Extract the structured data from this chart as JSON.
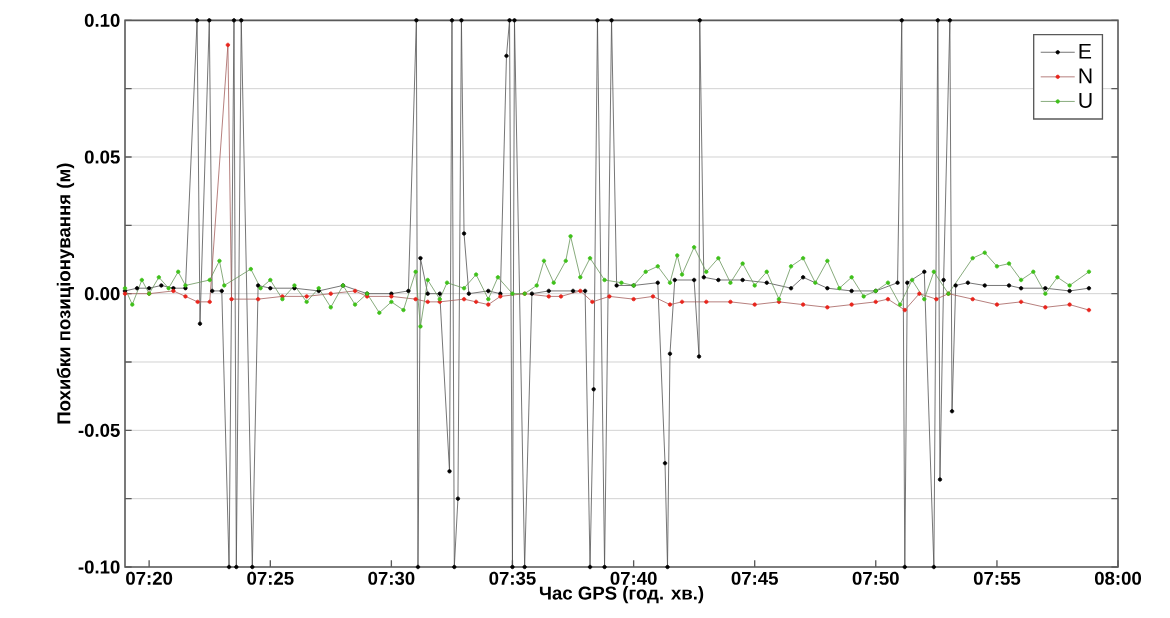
{
  "chart_data": {
    "type": "line",
    "xlabel": "Час GPS (год. хв.)",
    "ylabel": "Похибки позиціонування (м)",
    "xlim": [
      7.3167,
      8.0
    ],
    "ylim": [
      -0.1,
      0.1
    ],
    "xticks": [
      {
        "value": 7.3333,
        "label": "07:20"
      },
      {
        "value": 7.4167,
        "label": "07:25"
      },
      {
        "value": 7.5,
        "label": "07:30"
      },
      {
        "value": 7.5833,
        "label": "07:35"
      },
      {
        "value": 7.6667,
        "label": "07:40"
      },
      {
        "value": 7.75,
        "label": "07:45"
      },
      {
        "value": 7.8333,
        "label": "07:50"
      },
      {
        "value": 7.9167,
        "label": "07:55"
      },
      {
        "value": 8.0,
        "label": "08:00"
      }
    ],
    "yticks": [
      {
        "value": -0.1,
        "label": "-0.10"
      },
      {
        "value": -0.075,
        "label": null
      },
      {
        "value": -0.05,
        "label": "-0.05"
      },
      {
        "value": -0.025,
        "label": null
      },
      {
        "value": 0,
        "label": "0.00"
      },
      {
        "value": 0.025,
        "label": null
      },
      {
        "value": 0.05,
        "label": "0.05"
      },
      {
        "value": 0.075,
        "label": null
      },
      {
        "value": 0.1,
        "label": "0.10"
      }
    ],
    "grid": "y",
    "legend": "top right",
    "marker": "circle",
    "line_style": "solid",
    "series": [
      {
        "name": "E",
        "color": "#000000",
        "x": [
          7.3167,
          7.325,
          7.3333,
          7.3417,
          7.35,
          7.3583,
          7.3663,
          7.3683,
          7.3747,
          7.3767,
          7.3833,
          7.3883,
          7.3917,
          7.3933,
          7.3967,
          7.4043,
          7.4083,
          7.4167,
          7.4333,
          7.45,
          7.4667,
          7.4833,
          7.5,
          7.5117,
          7.5172,
          7.5183,
          7.52,
          7.525,
          7.5333,
          7.54,
          7.5417,
          7.5433,
          7.5458,
          7.5482,
          7.55,
          7.5533,
          7.5667,
          7.575,
          7.5792,
          7.5813,
          7.5833,
          7.5847,
          7.5917,
          7.5967,
          7.6083,
          7.625,
          7.6333,
          7.6367,
          7.6392,
          7.6418,
          7.6467,
          7.6515,
          7.655,
          7.6667,
          7.6833,
          7.6883,
          7.69,
          7.6917,
          7.695,
          7.7083,
          7.7117,
          7.7122,
          7.715,
          7.725,
          7.7417,
          7.7583,
          7.775,
          7.7833,
          7.8,
          7.8167,
          7.8333,
          7.8483,
          7.8512,
          7.8533,
          7.855,
          7.8667,
          7.8733,
          7.876,
          7.8775,
          7.88,
          7.8843,
          7.8858,
          7.8883,
          7.8967,
          7.9083,
          7.925,
          7.9333,
          7.95,
          7.9667,
          7.98
        ],
        "values": [
          0.001,
          0.002,
          0.002,
          0.003,
          0.002,
          0.002,
          0.1,
          -0.011,
          0.1,
          0.001,
          0.001,
          -0.1,
          0.1,
          -0.1,
          0.1,
          -0.1,
          0.003,
          0.002,
          0.002,
          0.001,
          0.003,
          0.0,
          0.0,
          0.001,
          0.1,
          -0.1,
          0.013,
          0.0,
          0.0,
          -0.065,
          0.1,
          -0.1,
          -0.075,
          0.1,
          0.022,
          0.0,
          0.001,
          0.0,
          0.087,
          0.1,
          -0.1,
          0.1,
          -0.1,
          0.0,
          0.001,
          0.001,
          0.001,
          -0.1,
          -0.035,
          0.1,
          -0.1,
          0.1,
          0.003,
          0.003,
          0.004,
          -0.062,
          -0.1,
          -0.022,
          0.005,
          0.005,
          -0.023,
          0.1,
          0.006,
          0.005,
          0.005,
          0.004,
          0.002,
          0.006,
          0.002,
          0.001,
          0.001,
          0.004,
          0.1,
          -0.1,
          0.004,
          0.008,
          -0.1,
          0.1,
          -0.068,
          0.005,
          0.1,
          -0.043,
          0.003,
          0.004,
          0.003,
          0.003,
          0.002,
          0.002,
          0.001,
          0.002
        ]
      },
      {
        "name": "N",
        "color": "#e8241c",
        "x": [
          7.3167,
          7.3333,
          7.35,
          7.3583,
          7.3667,
          7.375,
          7.3875,
          7.39,
          7.4083,
          7.425,
          7.4417,
          7.4583,
          7.475,
          7.4833,
          7.5,
          7.5167,
          7.525,
          7.5333,
          7.55,
          7.5583,
          7.5667,
          7.575,
          7.5917,
          7.6083,
          7.6167,
          7.63,
          7.6383,
          7.65,
          7.6667,
          7.68,
          7.6917,
          7.7,
          7.7167,
          7.7333,
          7.75,
          7.7667,
          7.7833,
          7.8,
          7.8167,
          7.8333,
          7.8417,
          7.8533,
          7.8633,
          7.875,
          7.8833,
          7.9,
          7.9167,
          7.9333,
          7.95,
          7.9667,
          7.98
        ],
        "values": [
          0.0,
          0.0,
          0.001,
          -0.001,
          -0.003,
          -0.003,
          0.091,
          -0.002,
          -0.002,
          -0.001,
          -0.001,
          0.0,
          0.001,
          -0.001,
          -0.001,
          -0.002,
          -0.003,
          -0.003,
          -0.002,
          -0.003,
          -0.004,
          -0.001,
          0.0,
          -0.001,
          -0.001,
          0.001,
          -0.003,
          -0.001,
          -0.002,
          -0.001,
          -0.004,
          -0.003,
          -0.003,
          -0.003,
          -0.004,
          -0.003,
          -0.004,
          -0.005,
          -0.004,
          -0.003,
          -0.002,
          -0.006,
          0.0,
          -0.002,
          0.0,
          -0.002,
          -0.004,
          -0.003,
          -0.005,
          -0.004,
          -0.006
        ]
      },
      {
        "name": "U",
        "color": "#3fc01a",
        "x": [
          7.3167,
          7.3217,
          7.3283,
          7.3333,
          7.34,
          7.3467,
          7.3533,
          7.3583,
          7.375,
          7.3817,
          7.385,
          7.4033,
          7.41,
          7.4167,
          7.425,
          7.4333,
          7.4417,
          7.45,
          7.4583,
          7.4667,
          7.475,
          7.4833,
          7.4917,
          7.5,
          7.5083,
          7.5167,
          7.52,
          7.525,
          7.5333,
          7.5383,
          7.55,
          7.5583,
          7.5667,
          7.5733,
          7.5833,
          7.5917,
          7.6,
          7.605,
          7.6117,
          7.62,
          7.6233,
          7.63,
          7.6367,
          7.6467,
          7.6583,
          7.6667,
          7.675,
          7.6833,
          7.6917,
          7.6967,
          7.7,
          7.7083,
          7.7167,
          7.725,
          7.7333,
          7.7417,
          7.75,
          7.7583,
          7.7667,
          7.775,
          7.7833,
          7.7917,
          7.8,
          7.8083,
          7.8167,
          7.825,
          7.8333,
          7.8417,
          7.85,
          7.8583,
          7.8667,
          7.8733,
          7.8833,
          7.9,
          7.9083,
          7.9167,
          7.925,
          7.9333,
          7.9417,
          7.95,
          7.9583,
          7.9667,
          7.98
        ],
        "values": [
          0.002,
          -0.004,
          0.005,
          0.0,
          0.006,
          0.002,
          0.008,
          0.003,
          0.005,
          0.012,
          0.003,
          0.009,
          0.002,
          0.005,
          -0.002,
          0.003,
          -0.003,
          0.002,
          -0.005,
          0.003,
          -0.004,
          0.0,
          -0.007,
          -0.003,
          -0.006,
          0.008,
          -0.012,
          0.005,
          -0.002,
          0.004,
          0.002,
          0.007,
          -0.002,
          0.006,
          0.0,
          0.0,
          0.003,
          0.012,
          0.004,
          0.012,
          0.021,
          0.006,
          0.013,
          0.005,
          0.004,
          0.003,
          0.008,
          0.01,
          0.004,
          0.014,
          0.007,
          0.017,
          0.008,
          0.013,
          0.004,
          0.011,
          0.003,
          0.008,
          -0.002,
          0.01,
          0.013,
          0.004,
          0.012,
          0.002,
          0.006,
          -0.001,
          0.001,
          0.004,
          -0.004,
          0.005,
          -0.002,
          0.008,
          0.0,
          0.013,
          0.015,
          0.01,
          0.011,
          0.005,
          0.008,
          0.0,
          0.006,
          0.003,
          0.008
        ]
      }
    ]
  }
}
